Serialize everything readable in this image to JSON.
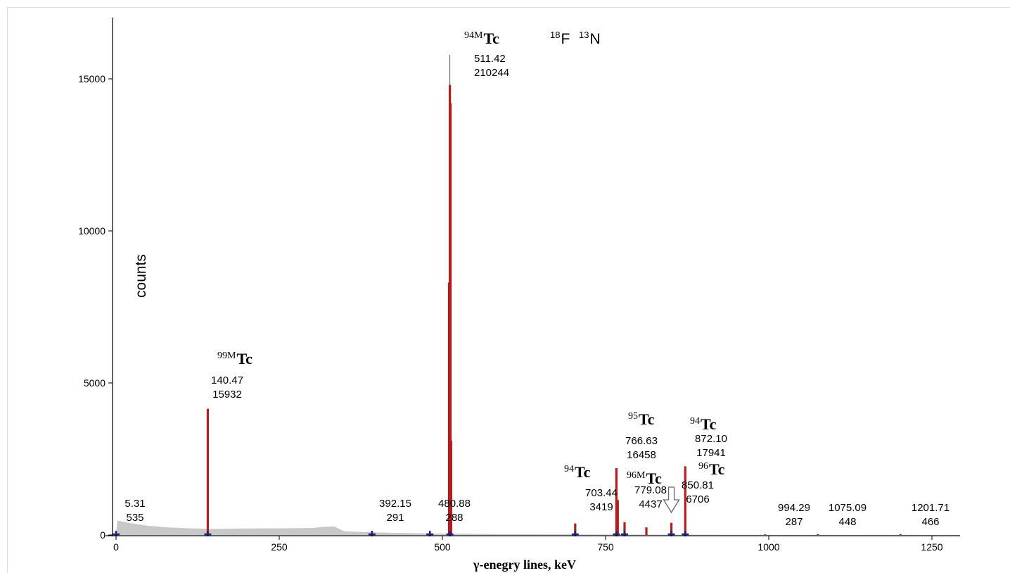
{
  "chart_data": {
    "type": "line",
    "title": "",
    "xlabel": "γ-enegry lines, keV",
    "ylabel": "counts",
    "xlim": [
      0,
      1290
    ],
    "ylim": [
      0,
      16800
    ],
    "xticks": [
      0,
      250,
      500,
      750,
      1000,
      1250
    ],
    "yticks": [
      0,
      5000,
      10000,
      15000
    ],
    "colors": {
      "background": "#c8c8c8",
      "peak": "#b71c1c",
      "marker": "#1a237e",
      "axis": "#000000"
    },
    "continuum": [
      {
        "x": 0,
        "y": 0
      },
      {
        "x": 2,
        "y": 480
      },
      {
        "x": 10,
        "y": 440
      },
      {
        "x": 25,
        "y": 380
      },
      {
        "x": 50,
        "y": 300
      },
      {
        "x": 80,
        "y": 250
      },
      {
        "x": 110,
        "y": 220
      },
      {
        "x": 150,
        "y": 200
      },
      {
        "x": 200,
        "y": 215
      },
      {
        "x": 250,
        "y": 220
      },
      {
        "x": 300,
        "y": 230
      },
      {
        "x": 320,
        "y": 270
      },
      {
        "x": 335,
        "y": 280
      },
      {
        "x": 342,
        "y": 200
      },
      {
        "x": 350,
        "y": 120
      },
      {
        "x": 400,
        "y": 80
      },
      {
        "x": 450,
        "y": 60
      },
      {
        "x": 500,
        "y": 45
      },
      {
        "x": 600,
        "y": 30
      },
      {
        "x": 700,
        "y": 20
      },
      {
        "x": 800,
        "y": 15
      },
      {
        "x": 900,
        "y": 10
      },
      {
        "x": 1000,
        "y": 8
      },
      {
        "x": 1290,
        "y": 5
      }
    ],
    "peaks": [
      {
        "energy": 140.47,
        "height": 4150
      },
      {
        "energy": 510.2,
        "height": 8300
      },
      {
        "energy": 511.42,
        "height": 14800
      },
      {
        "energy": 512.4,
        "height": 14200
      },
      {
        "energy": 513.4,
        "height": 3100
      },
      {
        "energy": 703.44,
        "height": 380
      },
      {
        "energy": 766.63,
        "height": 2200
      },
      {
        "energy": 768.6,
        "height": 1150
      },
      {
        "energy": 779.08,
        "height": 420
      },
      {
        "energy": 812.5,
        "height": 250
      },
      {
        "energy": 850.81,
        "height": 400
      },
      {
        "energy": 872.1,
        "height": 2260
      },
      {
        "energy": 994.29,
        "height": 20
      },
      {
        "energy": 1075.09,
        "height": 30
      },
      {
        "energy": 1201.71,
        "height": 30
      }
    ],
    "marked_energies": [
      0,
      140.47,
      392.15,
      480.88,
      511.42,
      703.44,
      766.63,
      779.08,
      850.81,
      872.1
    ],
    "annotations": [
      {
        "energy": "5.31",
        "area": "535"
      },
      {
        "energy": "140.47",
        "area": "15932"
      },
      {
        "energy": "392.15",
        "area": "291"
      },
      {
        "energy": "480.88",
        "area": "288"
      },
      {
        "energy": "511.42",
        "area": "210244"
      },
      {
        "energy": "703.44",
        "area": "3419"
      },
      {
        "energy": "766.63",
        "area": "16458"
      },
      {
        "energy": "779.08",
        "area": "4437"
      },
      {
        "energy": "850.81",
        "area": "6706"
      },
      {
        "energy": "872.10",
        "area": "17941"
      },
      {
        "energy": "994.29",
        "area": "287"
      },
      {
        "energy": "1075.09",
        "area": "448"
      },
      {
        "energy": "1201.71",
        "area": "466"
      }
    ],
    "isotopes": [
      {
        "mass": "99M",
        "element": "Tc",
        "peak": "140.47"
      },
      {
        "mass": "94M",
        "element": "Tc",
        "peak": "511.42"
      },
      {
        "mass": "18",
        "element": "F",
        "peak": "511.42"
      },
      {
        "mass": "13",
        "element": "N",
        "peak": "511.42"
      },
      {
        "mass": "94",
        "element": "Tc",
        "peak": "703.44"
      },
      {
        "mass": "95",
        "element": "Tc",
        "peak": "766.63"
      },
      {
        "mass": "96M",
        "element": "Tc",
        "peak": "779.08"
      },
      {
        "mass": "96",
        "element": "Tc",
        "peak": "850.81"
      },
      {
        "mass": "94",
        "element": "Tc",
        "peak": "872.10"
      }
    ],
    "arrow_marker": {
      "energy": 850.81
    }
  }
}
